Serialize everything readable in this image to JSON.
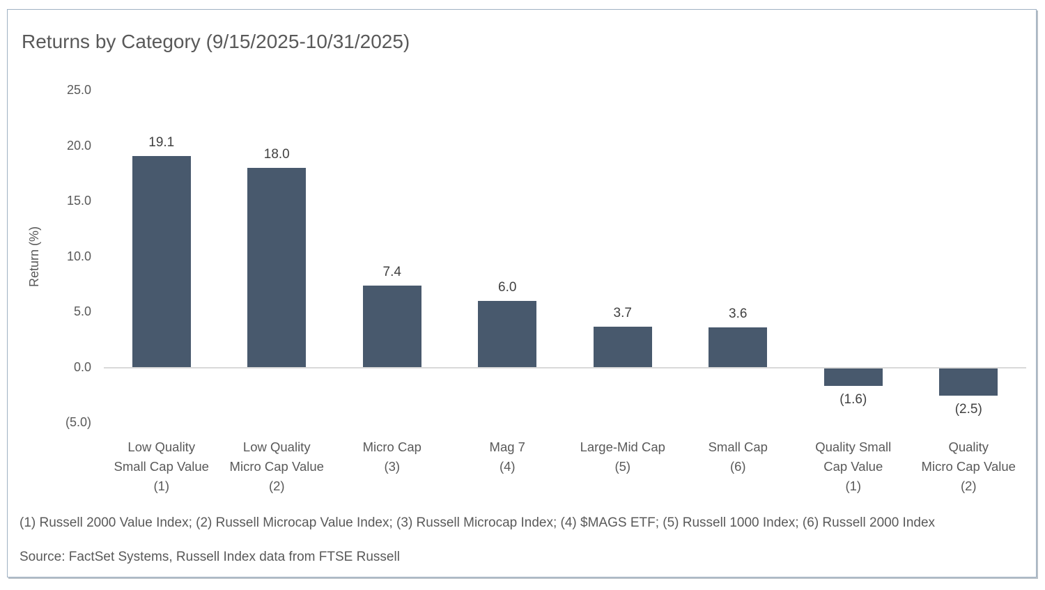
{
  "title": "Returns by Category (9/15/2025-10/31/2025)",
  "chart_data": {
    "type": "bar",
    "title": "Returns by Category (9/15/2025-10/31/2025)",
    "categories": [
      [
        "Low Quality",
        "Small Cap Value",
        "(1)"
      ],
      [
        "Low Quality",
        "Micro Cap Value",
        "(2)"
      ],
      [
        "Micro Cap",
        "(3)"
      ],
      [
        "Mag 7",
        "(4)"
      ],
      [
        "Large-Mid Cap",
        "(5)"
      ],
      [
        "Small Cap",
        "(6)"
      ],
      [
        "Quality Small",
        "Cap Value",
        "(1)"
      ],
      [
        "Quality",
        "Micro Cap Value",
        "(2)"
      ]
    ],
    "values": [
      19.1,
      18.0,
      7.4,
      6.0,
      3.7,
      3.6,
      -1.6,
      -2.5
    ],
    "value_labels": [
      "19.1",
      "18.0",
      "7.4",
      "6.0",
      "3.7",
      "3.6",
      "(1.6)",
      "(2.5)"
    ],
    "xlabel": "",
    "ylabel": "Return (%)",
    "ylim": [
      -5,
      25
    ],
    "yticks": [
      25,
      20,
      15,
      10,
      5,
      0,
      -5
    ],
    "ytick_labels": [
      "25.0",
      "20.0",
      "15.0",
      "10.0",
      "5.0",
      "0.0",
      "(5.0)"
    ],
    "bar_color": "#48596D",
    "zero_line_color": "#d9d9d9",
    "grid": false,
    "legend": false
  },
  "footnotes": {
    "indices": "(1) Russell 2000 Value Index; (2) Russell Microcap Value Index; (3) Russell Microcap Index; (4) $MAGS ETF; (5) Russell 1000 Index; (6) Russell 2000 Index",
    "source": "Source: FactSet Systems, Russell Index data from FTSE Russell"
  }
}
